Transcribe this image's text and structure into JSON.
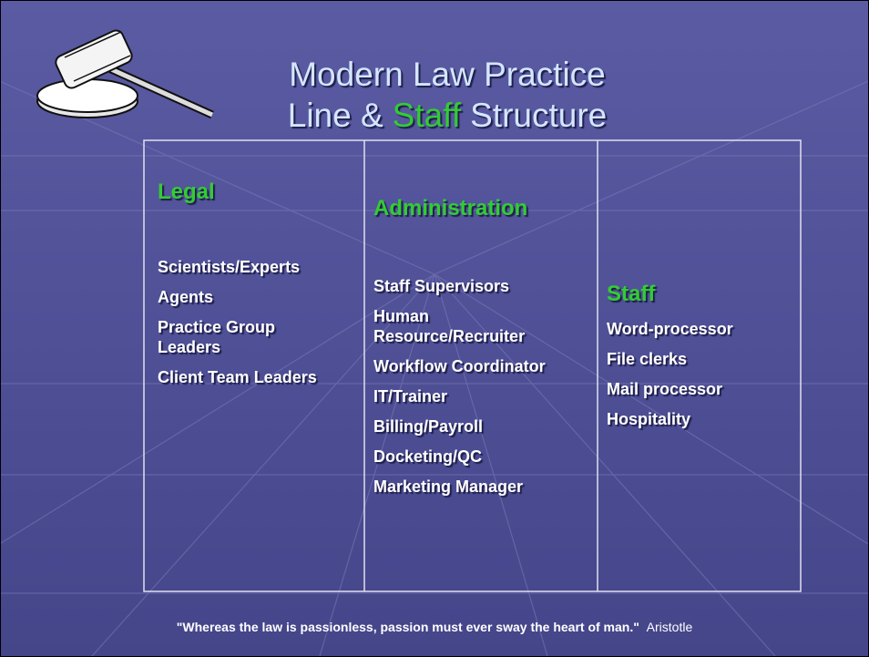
{
  "title": {
    "line1": "Modern Law Practice",
    "line2": [
      "Line &",
      "Staff",
      "Structure"
    ]
  },
  "table": {
    "columns": [
      {
        "heading": "Legal",
        "items": [
          "Scientists/Experts",
          "Agents",
          "Practice Group Leaders",
          "Client Team Leaders"
        ]
      },
      {
        "heading": "Administration",
        "items": [
          "Staff Supervisors",
          "Human Resource/Recruiter",
          "Workflow Coordinator",
          "IT/Trainer",
          "Billing/Payroll",
          "Docketing/QC",
          "Marketing Manager"
        ]
      },
      {
        "heading": "Staff",
        "items": [
          "Word-processor",
          "File clerks",
          "Mail processor",
          "Hospitality"
        ]
      }
    ]
  },
  "footer": {
    "quote": "\"Whereas the law is passionless, passion must ever sway the heart of man.\"",
    "author": "Aristotle"
  }
}
